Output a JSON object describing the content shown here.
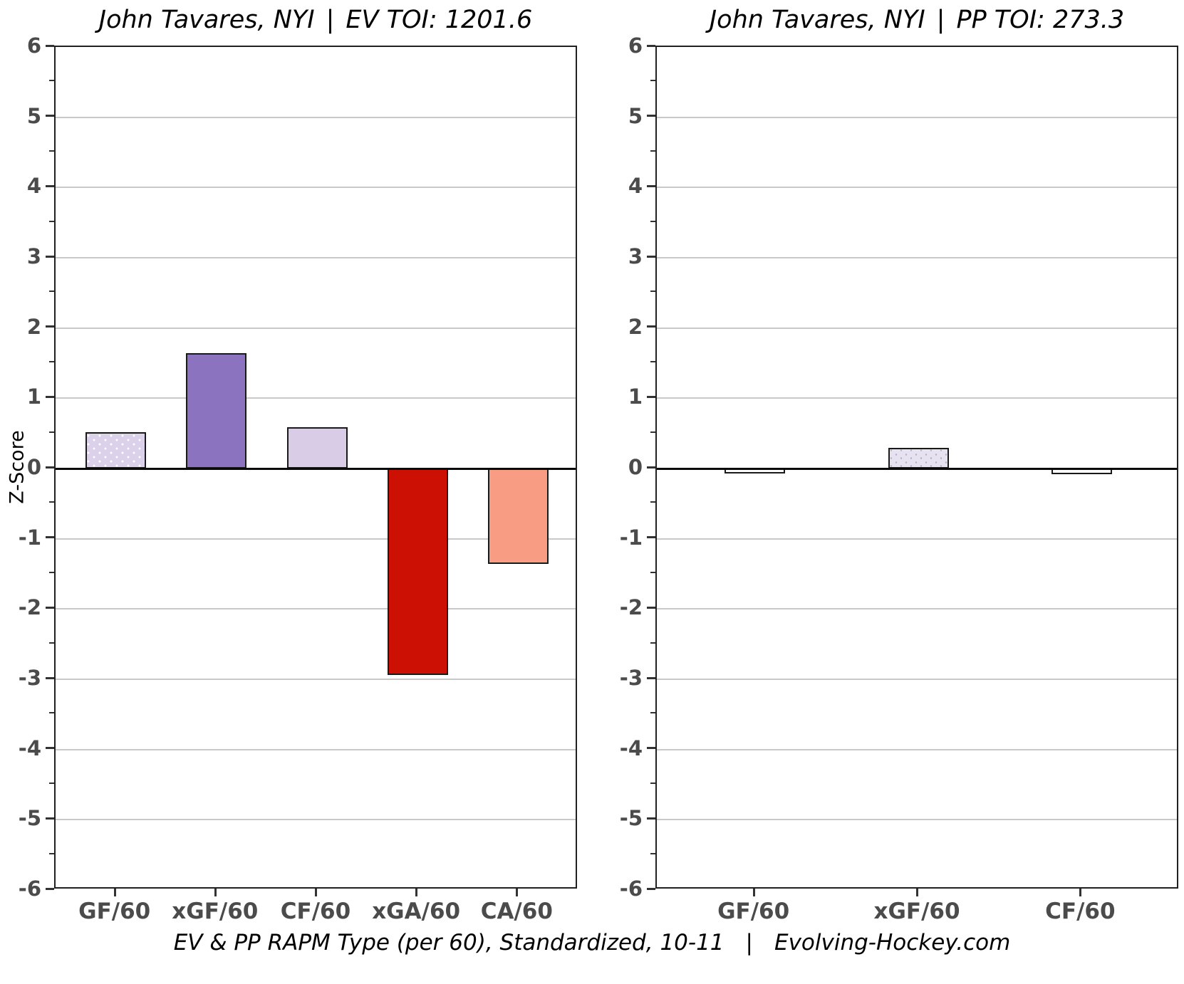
{
  "chart_data": [
    {
      "type": "bar",
      "panel": "EV",
      "title": {
        "player": "John Tavares, NYI",
        "sep": "|",
        "toi": "EV TOI: 1201.6"
      },
      "categories": [
        "GF/60",
        "xGF/60",
        "CF/60",
        "xGA/60",
        "CA/60"
      ],
      "values": [
        0.52,
        1.64,
        0.59,
        -2.94,
        -1.36
      ],
      "bar_colors": [
        "#dcd1ea",
        "#8c73c0",
        "#d8cce7",
        "#cd1004",
        "#f89c84"
      ],
      "bar_textures": [
        "white-dots",
        "solid",
        "solid",
        "solid",
        "solid"
      ],
      "ylabel": "Z-Score",
      "xlabel": "",
      "ylim": [
        -6,
        6
      ],
      "yticks": [
        6,
        5,
        4,
        3,
        2,
        1,
        0,
        -1,
        -2,
        -3,
        -4,
        -5,
        -6
      ],
      "grid": true,
      "legend": "none"
    },
    {
      "type": "bar",
      "panel": "PP",
      "title": {
        "player": "John Tavares, NYI",
        "sep": "|",
        "toi": "PP TOI: 273.3"
      },
      "categories": [
        "GF/60",
        "xGF/60",
        "CF/60"
      ],
      "values": [
        -0.07,
        0.29,
        -0.08
      ],
      "bar_colors": [
        "#fbfafd",
        "#e7e2f0",
        "#fbfafd"
      ],
      "bar_textures": [
        "faint-dots",
        "speckle",
        "faint-dots"
      ],
      "ylabel": "",
      "xlabel": "",
      "ylim": [
        -6,
        6
      ],
      "yticks": [
        6,
        5,
        4,
        3,
        2,
        1,
        0,
        -1,
        -2,
        -3,
        -4,
        -5,
        -6
      ],
      "grid": true,
      "legend": "none"
    }
  ],
  "caption": {
    "text": "EV & PP RAPM Type (per 60), Standardized, 10-11",
    "sep": "|",
    "site": "Evolving-Hockey.com"
  },
  "colors": {
    "background": "#ffffff",
    "panel_border": "#202020",
    "gridline": "#c9c9c9",
    "zero_line": "#0a0a0a",
    "tick": "#333333",
    "tick_label": "#4b4b4b",
    "bar_outline": "#1a1a1a"
  }
}
